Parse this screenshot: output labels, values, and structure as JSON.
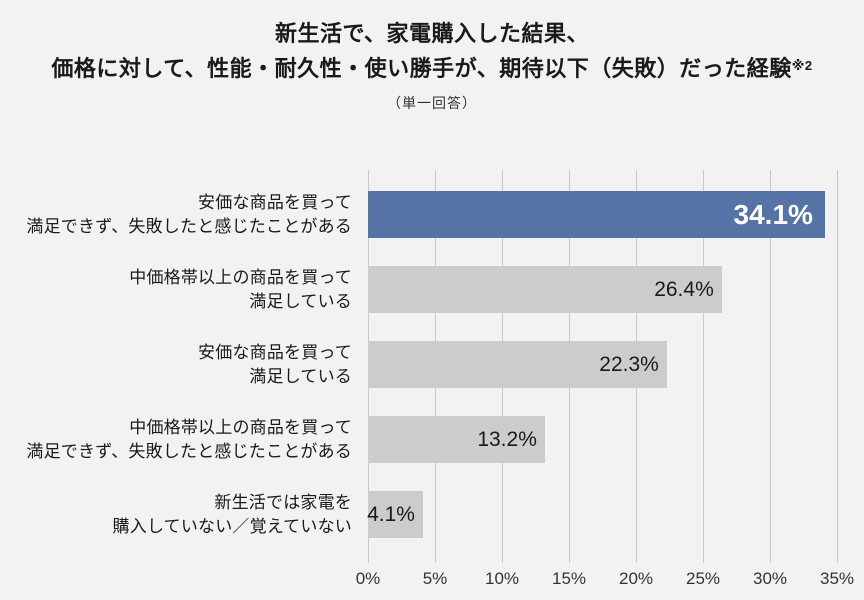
{
  "header": {
    "title_line1": "新生活で、家電購入した結果、",
    "title_line2": "価格に対して、性能・耐久性・使い勝手が、期待以下（失敗）だった経験",
    "title_note": "※2",
    "subtitle": "（単一回答）"
  },
  "chart_data": {
    "type": "bar",
    "orientation": "horizontal",
    "title": "新生活で、家電購入した結果、価格に対して、性能・耐久性・使い勝手が、期待以下（失敗）だった経験※2",
    "subtitle": "（単一回答）",
    "categories": [
      [
        "安価な商品を買って",
        "満足できず、失敗したと感じたことがある"
      ],
      [
        "中価格帯以上の商品を買って",
        "満足している"
      ],
      [
        "安価な商品を買って",
        "満足している"
      ],
      [
        "中価格帯以上の商品を買って",
        "満足できず、失敗したと感じたことがある"
      ],
      [
        "新生活では家電を",
        "購入していない／覚えていない"
      ]
    ],
    "values": [
      34.1,
      26.4,
      22.3,
      13.2,
      4.1
    ],
    "value_labels": [
      "34.1%",
      "26.4%",
      "22.3%",
      "13.2%",
      "4.1%"
    ],
    "xlim": [
      0,
      35
    ],
    "x_tick_values": [
      0,
      5,
      10,
      15,
      20,
      25,
      30,
      35
    ],
    "x_tick_labels": [
      "0%",
      "5%",
      "10%",
      "15%",
      "20%",
      "25%",
      "30%",
      "35%"
    ],
    "grid": true,
    "legend": "none",
    "highlight_index": 0,
    "colors": {
      "background": "#f2f2f2",
      "highlight_bar": "#5673a7",
      "default_bar": "#cccccc",
      "highlight_value_text": "#ffffff",
      "value_text": "#1a1a1a",
      "gridline": "#c9c9c9",
      "text": "#1a1a1a"
    }
  }
}
